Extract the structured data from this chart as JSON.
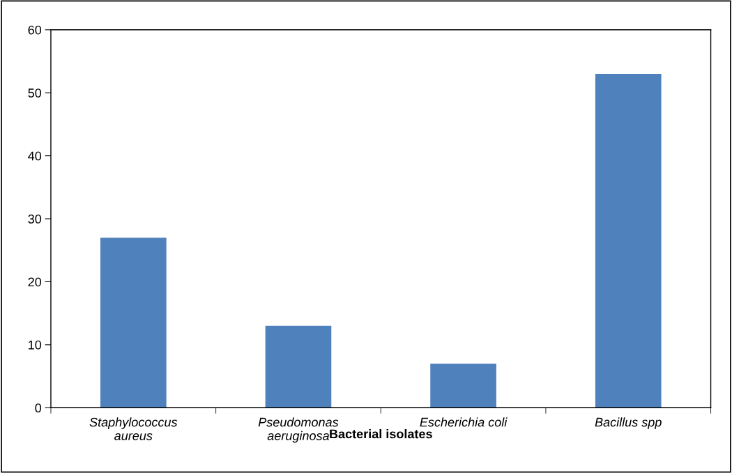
{
  "chart_data": {
    "type": "bar",
    "xlabel": "Bacterial isolates",
    "categories": [
      "Staphylococcus\naureus",
      "Pseudomonas\naeruginosa",
      "Escherichia coli",
      "Bacillus spp"
    ],
    "values": [
      27,
      13,
      7,
      53
    ],
    "color": "#4f81bd",
    "ylim": [
      0,
      60
    ],
    "yticks": [
      0,
      10,
      20,
      30,
      40,
      50,
      60
    ],
    "grid": false,
    "legend": false
  }
}
